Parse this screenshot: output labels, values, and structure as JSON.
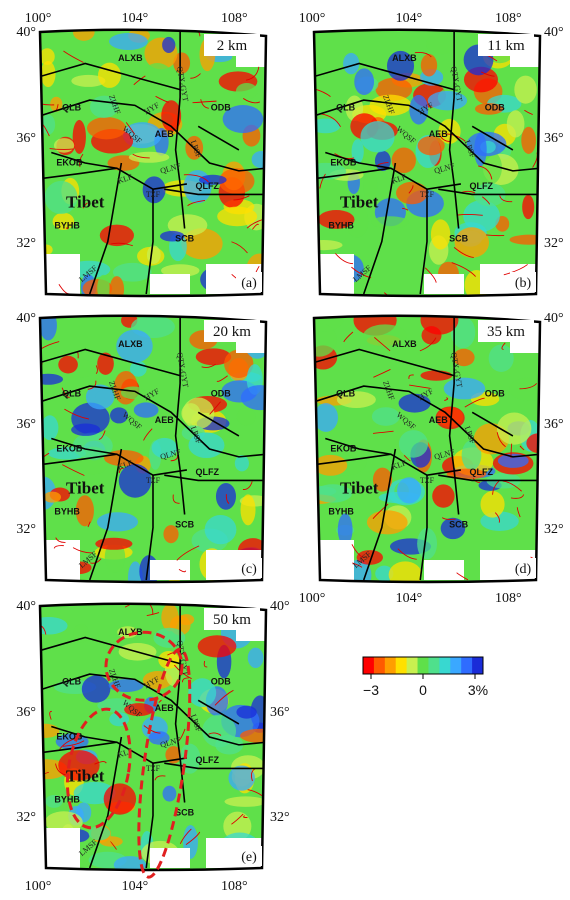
{
  "figure": {
    "panels": [
      {
        "id": "a",
        "depth_label": "2 km",
        "panel_label": "(a)",
        "lon_ticks_top": [
          "100°",
          "104°",
          "108°"
        ],
        "lat_ticks_left": [
          "40°",
          "36°",
          "32°"
        ],
        "lat_ticks_right": [],
        "lon_ticks_bottom": []
      },
      {
        "id": "b",
        "depth_label": "11 km",
        "panel_label": "(b)",
        "lon_ticks_top": [
          "100°",
          "104°",
          "108°"
        ],
        "lat_ticks_left": [],
        "lat_ticks_right": [
          "40°",
          "36°",
          "32°"
        ],
        "lon_ticks_bottom": []
      },
      {
        "id": "c",
        "depth_label": "20 km",
        "panel_label": "(c)",
        "lon_ticks_top": [],
        "lat_ticks_left": [
          "40°",
          "36°",
          "32°"
        ],
        "lat_ticks_right": [],
        "lon_ticks_bottom": []
      },
      {
        "id": "d",
        "depth_label": "35 km",
        "panel_label": "(d)",
        "lon_ticks_top": [],
        "lat_ticks_left": [],
        "lat_ticks_right": [
          "40°",
          "36°",
          "32°"
        ],
        "lon_ticks_bottom": [
          "100°",
          "104°",
          "108°"
        ]
      },
      {
        "id": "e",
        "depth_label": "50 km",
        "panel_label": "(e)",
        "lon_ticks_top": [],
        "lat_ticks_left": [
          "40°",
          "36°",
          "32°"
        ],
        "lat_ticks_right": [
          "40°",
          "36°",
          "32°"
        ],
        "lon_ticks_bottom": [
          "100°",
          "104°",
          "108°"
        ]
      }
    ],
    "regions": [
      "ALXB",
      "QLB",
      "ODB",
      "AEB",
      "EKOB",
      "QLFZ",
      "BYHB",
      "SCB"
    ],
    "tibet_label": "Tibet",
    "faults": [
      "QTX-GYT",
      "HYF",
      "ZLHF",
      "WQSF",
      "LPSF",
      "QLNF",
      "KLF",
      "TZF",
      "LMSF"
    ],
    "colors": {
      "scale": [
        "#ff0000",
        "#ff5a00",
        "#ff9e00",
        "#ffe000",
        "#c8f050",
        "#5fe04a",
        "#4fe08c",
        "#38d8d0",
        "#3aa8ff",
        "#2f6cff",
        "#1a2cd8"
      ],
      "fault_line": "#e00000",
      "boundary_line": "#000000",
      "highlight_ellipse": "#e02020"
    }
  },
  "colorbar": {
    "ticks": [
      "−3",
      "0",
      "3%"
    ]
  }
}
